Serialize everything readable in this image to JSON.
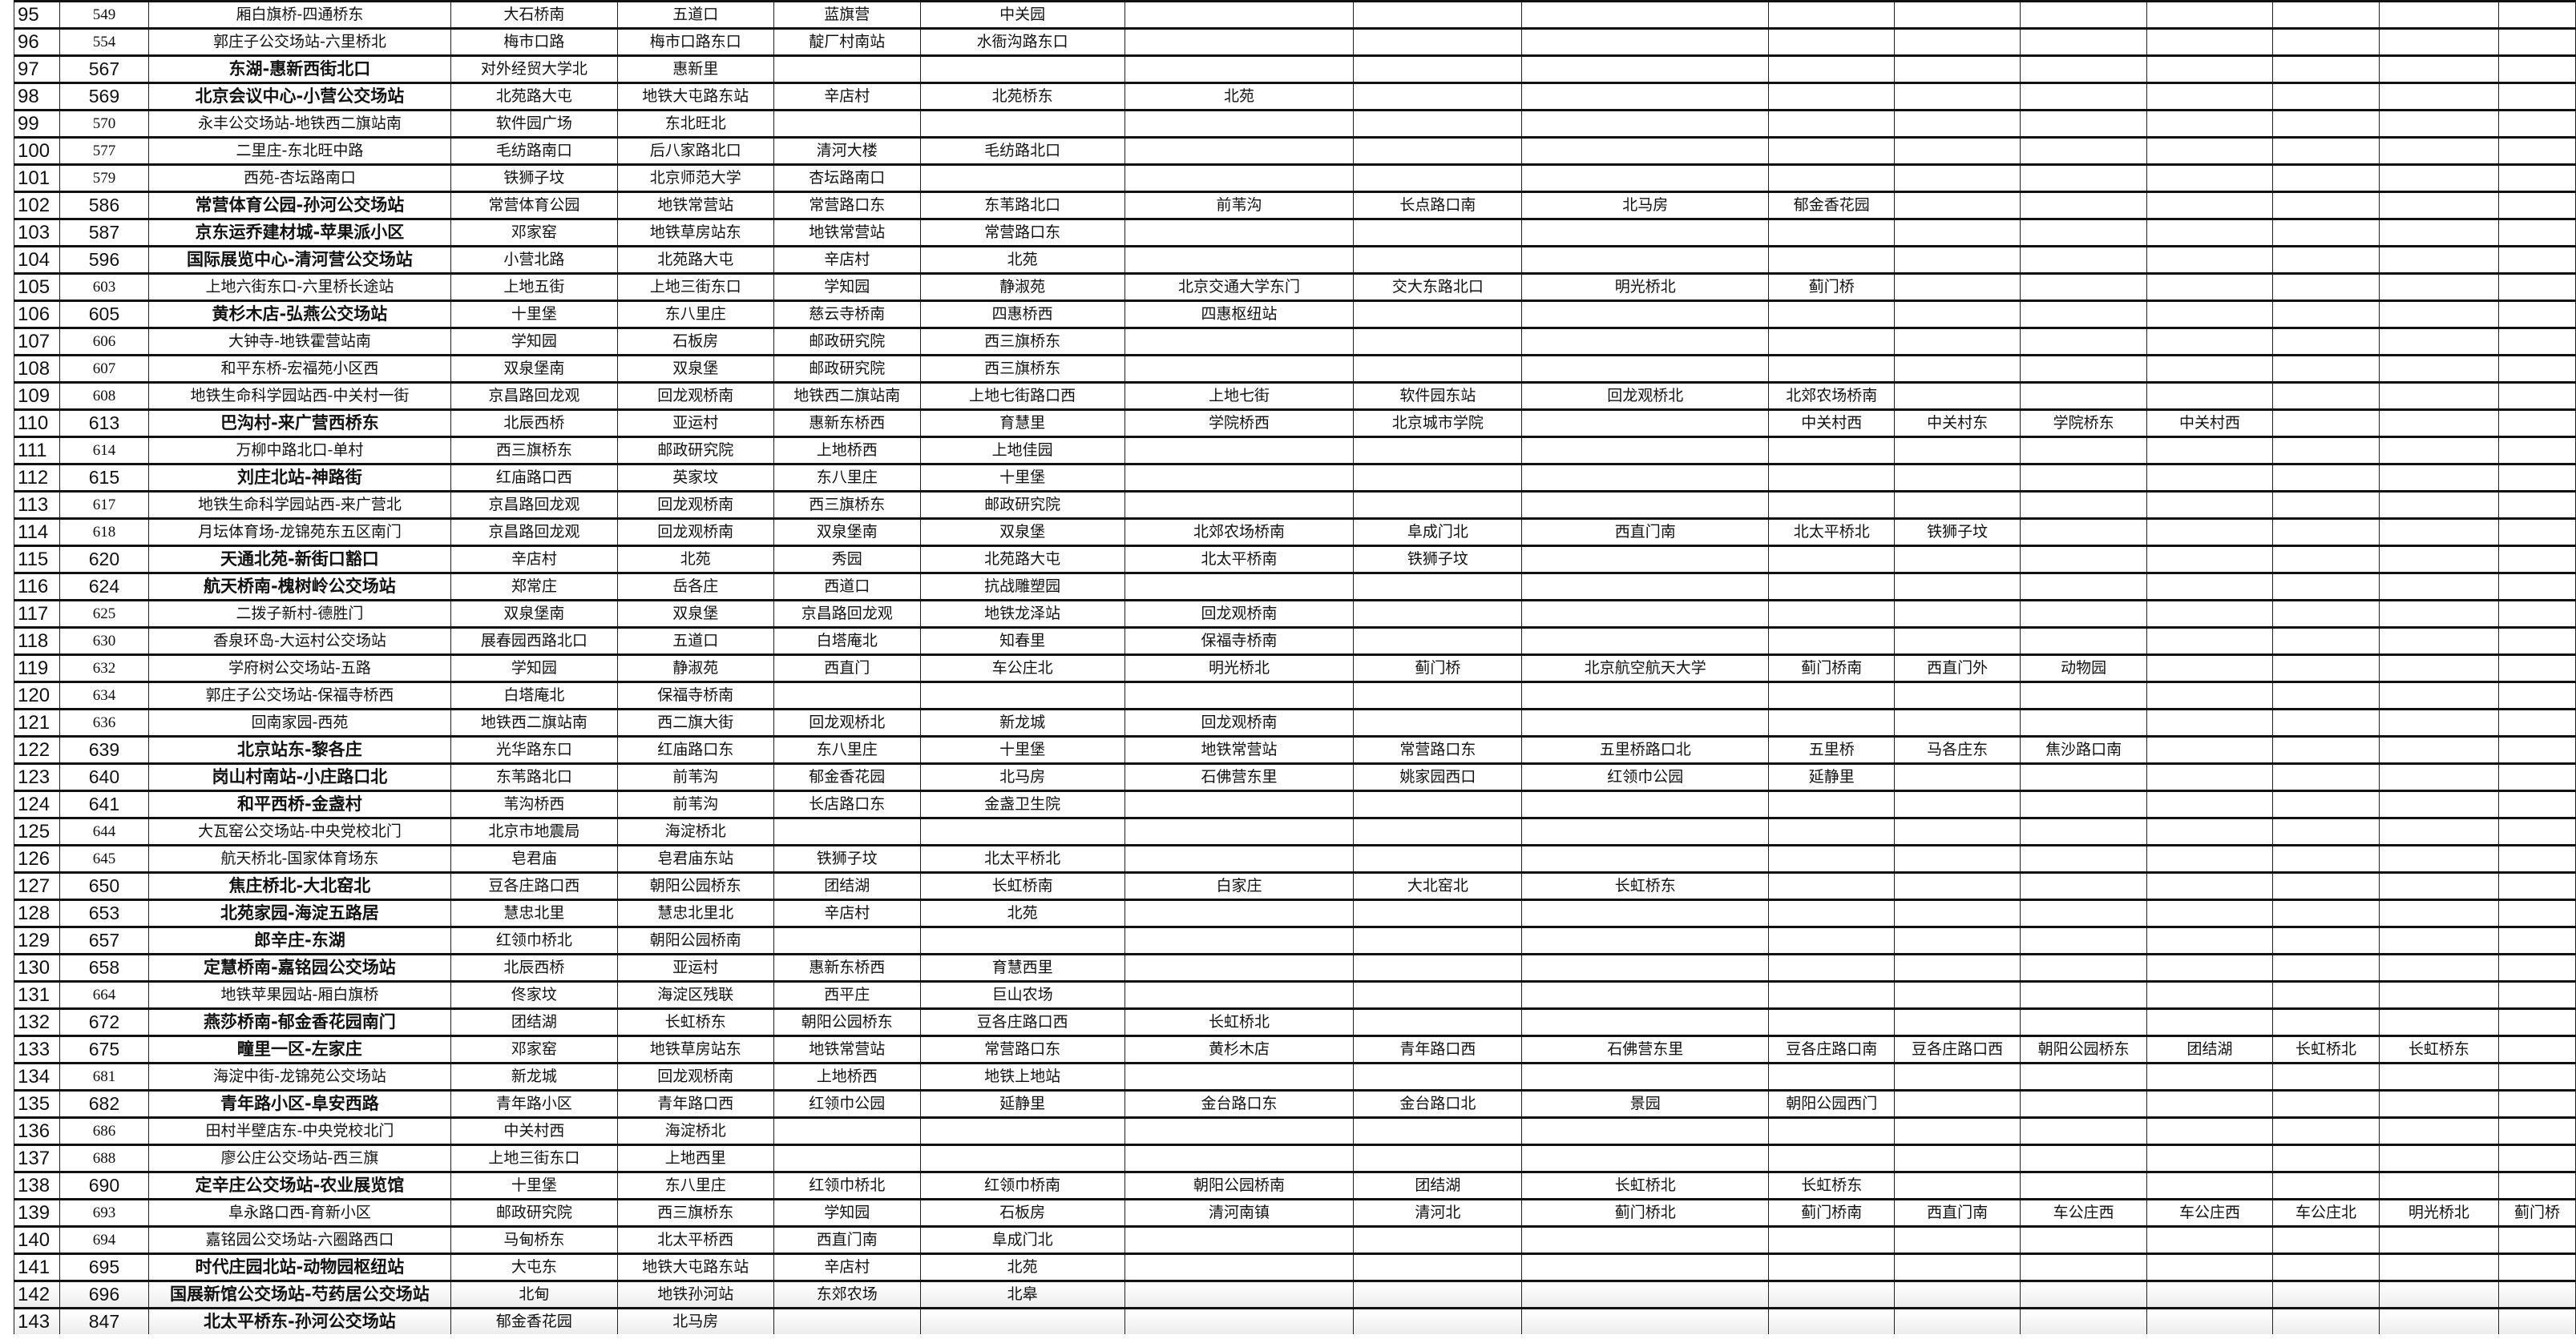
{
  "rows": [
    {
      "n": "95",
      "id": "549",
      "name": "厢白旗桥-四通桥东",
      "bold": false,
      "stops": [
        "大石桥南",
        "五道口",
        "蓝旗营",
        "中关园"
      ]
    },
    {
      "n": "96",
      "id": "554",
      "name": "郭庄子公交场站-六里桥北",
      "bold": false,
      "stops": [
        "梅市口路",
        "梅市口路东口",
        "靛厂村南站",
        "水衙沟路东口"
      ]
    },
    {
      "n": "97",
      "id": "567",
      "name": "东湖-惠新西街北口",
      "bold": true,
      "stops": [
        "对外经贸大学北",
        "惠新里"
      ]
    },
    {
      "n": "98",
      "id": "569",
      "name": "北京会议中心-小营公交场站",
      "bold": true,
      "stops": [
        "北苑路大屯",
        "地铁大屯路东站",
        "辛店村",
        "北苑桥东",
        "北苑"
      ]
    },
    {
      "n": "99",
      "id": "570",
      "name": "永丰公交场站-地铁西二旗站南",
      "bold": false,
      "stops": [
        "软件园广场",
        "东北旺北"
      ]
    },
    {
      "n": "100",
      "id": "577",
      "name": "二里庄-东北旺中路",
      "bold": false,
      "stops": [
        "毛纺路南口",
        "后八家路北口",
        "清河大楼",
        "毛纺路北口"
      ]
    },
    {
      "n": "101",
      "id": "579",
      "name": "西苑-杏坛路南口",
      "bold": false,
      "stops": [
        "铁狮子坟",
        "北京师范大学",
        "杏坛路南口"
      ]
    },
    {
      "n": "102",
      "id": "586",
      "name": "常营体育公园-孙河公交场站",
      "bold": true,
      "stops": [
        "常营体育公园",
        "地铁常营站",
        "常营路口东",
        "东苇路北口",
        "前苇沟",
        "长点路口南",
        "北马房",
        "郁金香花园"
      ]
    },
    {
      "n": "103",
      "id": "587",
      "name": "京东运乔建材城-苹果派小区",
      "bold": true,
      "stops": [
        "邓家窑",
        "地铁草房站东",
        "地铁常营站",
        "常营路口东"
      ]
    },
    {
      "n": "104",
      "id": "596",
      "name": "国际展览中心-清河营公交场站",
      "bold": true,
      "stops": [
        "小营北路",
        "北苑路大屯",
        "辛店村",
        "北苑"
      ]
    },
    {
      "n": "105",
      "id": "603",
      "name": "上地六街东口-六里桥长途站",
      "bold": false,
      "stops": [
        "上地五街",
        "上地三街东口",
        "学知园",
        "静淑苑",
        "北京交通大学东门",
        "交大东路北口",
        "明光桥北",
        "蓟门桥"
      ]
    },
    {
      "n": "106",
      "id": "605",
      "name": "黄杉木店-弘燕公交场站",
      "bold": true,
      "stops": [
        "十里堡",
        "东八里庄",
        "慈云寺桥南",
        "四惠桥西",
        "四惠枢纽站"
      ]
    },
    {
      "n": "107",
      "id": "606",
      "name": "大钟寺-地铁霍营站南",
      "bold": false,
      "stops": [
        "学知园",
        "石板房",
        "邮政研究院",
        "西三旗桥东"
      ]
    },
    {
      "n": "108",
      "id": "607",
      "name": "和平东桥-宏福苑小区西",
      "bold": false,
      "stops": [
        "双泉堡南",
        "双泉堡",
        "邮政研究院",
        "西三旗桥东"
      ]
    },
    {
      "n": "109",
      "id": "608",
      "name": "地铁生命科学园站西-中关村一街",
      "bold": false,
      "stops": [
        "京昌路回龙观",
        "回龙观桥南",
        "地铁西二旗站南",
        "上地七街路口西",
        "上地七街",
        "软件园东站",
        "回龙观桥北",
        "北郊农场桥南"
      ]
    },
    {
      "n": "110",
      "id": "613",
      "name": "巴沟村-来广营西桥东",
      "bold": true,
      "stops": [
        "北辰西桥",
        "亚运村",
        "惠新东桥西",
        "育慧里",
        "学院桥西",
        "北京城市学院",
        "",
        "中关村西",
        "中关村东",
        "学院桥东",
        "中关村西"
      ]
    },
    {
      "n": "111",
      "id": "614",
      "name": "万柳中路北口-单村",
      "bold": false,
      "stops": [
        "西三旗桥东",
        "邮政研究院",
        "上地桥西",
        "上地佳园"
      ]
    },
    {
      "n": "112",
      "id": "615",
      "name": "刘庄北站-神路街",
      "bold": true,
      "stops": [
        "红庙路口西",
        "英家坟",
        "东八里庄",
        "十里堡"
      ]
    },
    {
      "n": "113",
      "id": "617",
      "name": "地铁生命科学园站西-来广营北",
      "bold": false,
      "stops": [
        "京昌路回龙观",
        "回龙观桥南",
        "西三旗桥东",
        "邮政研究院"
      ]
    },
    {
      "n": "114",
      "id": "618",
      "name": "月坛体育场-龙锦苑东五区南门",
      "bold": false,
      "stops": [
        "京昌路回龙观",
        "回龙观桥南",
        "双泉堡南",
        "双泉堡",
        "北郊农场桥南",
        "阜成门北",
        "西直门南",
        "北太平桥北",
        "铁狮子坟"
      ]
    },
    {
      "n": "115",
      "id": "620",
      "name": "天通北苑-新街口豁口",
      "bold": true,
      "stops": [
        "辛店村",
        "北苑",
        "秀园",
        "北苑路大屯",
        "北太平桥南",
        "铁狮子坟"
      ]
    },
    {
      "n": "116",
      "id": "624",
      "name": "航天桥南-槐树岭公交场站",
      "bold": true,
      "stops": [
        "郑常庄",
        "岳各庄",
        "西道口",
        "抗战雕塑园"
      ]
    },
    {
      "n": "117",
      "id": "625",
      "name": "二拨子新村-德胜门",
      "bold": false,
      "stops": [
        "双泉堡南",
        "双泉堡",
        "京昌路回龙观",
        "地铁龙泽站",
        "回龙观桥南"
      ]
    },
    {
      "n": "118",
      "id": "630",
      "name": "香泉环岛-大运村公交场站",
      "bold": false,
      "stops": [
        "展春园西路北口",
        "五道口",
        "白塔庵北",
        "知春里",
        "保福寺桥南"
      ]
    },
    {
      "n": "119",
      "id": "632",
      "name": "学府树公交场站-五路",
      "bold": false,
      "stops": [
        "学知园",
        "静淑苑",
        "西直门",
        "车公庄北",
        "明光桥北",
        "蓟门桥",
        "北京航空航天大学",
        "蓟门桥南",
        "西直门外",
        "动物园"
      ]
    },
    {
      "n": "120",
      "id": "634",
      "name": "郭庄子公交场站-保福寺桥西",
      "bold": false,
      "stops": [
        "白塔庵北",
        "保福寺桥南"
      ]
    },
    {
      "n": "121",
      "id": "636",
      "name": "回南家园-西苑",
      "bold": false,
      "stops": [
        "地铁西二旗站南",
        "西二旗大街",
        "回龙观桥北",
        "新龙城",
        "回龙观桥南"
      ]
    },
    {
      "n": "122",
      "id": "639",
      "name": "北京站东-黎各庄",
      "bold": true,
      "stops": [
        "光华路东口",
        "红庙路口东",
        "东八里庄",
        "十里堡",
        "地铁常营站",
        "常营路口东",
        "五里桥路口北",
        "五里桥",
        "马各庄东",
        "焦沙路口南"
      ]
    },
    {
      "n": "123",
      "id": "640",
      "name": "岗山村南站-小庄路口北",
      "bold": true,
      "stops": [
        "东苇路北口",
        "前苇沟",
        "郁金香花园",
        "北马房",
        "石佛营东里",
        "姚家园西口",
        "红领巾公园",
        "延静里"
      ]
    },
    {
      "n": "124",
      "id": "641",
      "name": "和平西桥-金盏村",
      "bold": true,
      "stops": [
        "苇沟桥西",
        "前苇沟",
        "长店路口东",
        "金盏卫生院"
      ]
    },
    {
      "n": "125",
      "id": "644",
      "name": "大瓦窑公交场站-中央党校北门",
      "bold": false,
      "stops": [
        "北京市地震局",
        "海淀桥北"
      ]
    },
    {
      "n": "126",
      "id": "645",
      "name": "航天桥北-国家体育场东",
      "bold": false,
      "stops": [
        "皂君庙",
        "皂君庙东站",
        "铁狮子坟",
        "北太平桥北"
      ]
    },
    {
      "n": "127",
      "id": "650",
      "name": "焦庄桥北-大北窑北",
      "bold": true,
      "stops": [
        "豆各庄路口西",
        "朝阳公园桥东",
        "团结湖",
        "长虹桥南",
        "白家庄",
        "大北窑北",
        "长虹桥东"
      ]
    },
    {
      "n": "128",
      "id": "653",
      "name": "北苑家园-海淀五路居",
      "bold": true,
      "stops": [
        "慧忠北里",
        "慧忠北里北",
        "辛店村",
        "北苑"
      ]
    },
    {
      "n": "129",
      "id": "657",
      "name": "郎辛庄-东湖",
      "bold": true,
      "stops": [
        "红领巾桥北",
        "朝阳公园桥南"
      ]
    },
    {
      "n": "130",
      "id": "658",
      "name": "定慧桥南-嘉铭园公交场站",
      "bold": true,
      "stops": [
        "北辰西桥",
        "亚运村",
        "惠新东桥西",
        "育慧西里"
      ]
    },
    {
      "n": "131",
      "id": "664",
      "name": "地铁苹果园站-厢白旗桥",
      "bold": false,
      "stops": [
        "佟家坟",
        "海淀区残联",
        "西平庄",
        "巨山农场"
      ]
    },
    {
      "n": "132",
      "id": "672",
      "name": "燕莎桥南-郁金香花园南门",
      "bold": true,
      "stops": [
        "团结湖",
        "长虹桥东",
        "朝阳公园桥东",
        "豆各庄路口西",
        "长虹桥北"
      ]
    },
    {
      "n": "133",
      "id": "675",
      "name": "疃里一区-左家庄",
      "bold": true,
      "stops": [
        "邓家窑",
        "地铁草房站东",
        "地铁常营站",
        "常营路口东",
        "黄杉木店",
        "青年路口西",
        "石佛营东里",
        "豆各庄路口南",
        "豆各庄路口西",
        "朝阳公园桥东",
        "团结湖",
        "长虹桥北",
        "长虹桥东"
      ]
    },
    {
      "n": "134",
      "id": "681",
      "name": "海淀中街-龙锦苑公交场站",
      "bold": false,
      "stops": [
        "新龙城",
        "回龙观桥南",
        "上地桥西",
        "地铁上地站"
      ]
    },
    {
      "n": "135",
      "id": "682",
      "name": "青年路小区-阜安西路",
      "bold": true,
      "stops": [
        "青年路小区",
        "青年路口西",
        "红领巾公园",
        "延静里",
        "金台路口东",
        "金台路口北",
        "景园",
        "朝阳公园西门"
      ]
    },
    {
      "n": "136",
      "id": "686",
      "name": "田村半壁店东-中央党校北门",
      "bold": false,
      "stops": [
        "中关村西",
        "海淀桥北"
      ]
    },
    {
      "n": "137",
      "id": "688",
      "name": "廖公庄公交场站-西三旗",
      "bold": false,
      "stops": [
        "上地三街东口",
        "上地西里"
      ]
    },
    {
      "n": "138",
      "id": "690",
      "name": "定辛庄公交场站-农业展览馆",
      "bold": true,
      "stops": [
        "十里堡",
        "东八里庄",
        "红领巾桥北",
        "红领巾桥南",
        "朝阳公园桥南",
        "团结湖",
        "长虹桥北",
        "长虹桥东"
      ]
    },
    {
      "n": "139",
      "id": "693",
      "name": "阜永路口西-育新小区",
      "bold": false,
      "stops": [
        "邮政研究院",
        "西三旗桥东",
        "学知园",
        "石板房",
        "清河南镇",
        "清河北",
        "蓟门桥北",
        "蓟门桥南",
        "西直门南",
        "车公庄西",
        "车公庄西",
        "车公庄北",
        "明光桥北",
        "蓟门桥"
      ]
    },
    {
      "n": "140",
      "id": "694",
      "name": "嘉铭园公交场站-六圈路西口",
      "bold": false,
      "stops": [
        "马甸桥东",
        "北太平桥西",
        "西直门南",
        "阜成门北"
      ]
    },
    {
      "n": "141",
      "id": "695",
      "name": "时代庄园北站-动物园枢纽站",
      "bold": true,
      "stops": [
        "大屯东",
        "地铁大屯路东站",
        "辛店村",
        "北苑"
      ]
    },
    {
      "n": "142",
      "id": "696",
      "name": "国展新馆公交场站-芍药居公交场站",
      "bold": true,
      "stops": [
        "北甸",
        "地铁孙河站",
        "东郊农场",
        "北皋"
      ]
    },
    {
      "n": "143",
      "id": "847",
      "name": "北太平桥东-孙河公交场站",
      "bold": true,
      "stops": [
        "郁金香花园",
        "北马房"
      ]
    }
  ]
}
